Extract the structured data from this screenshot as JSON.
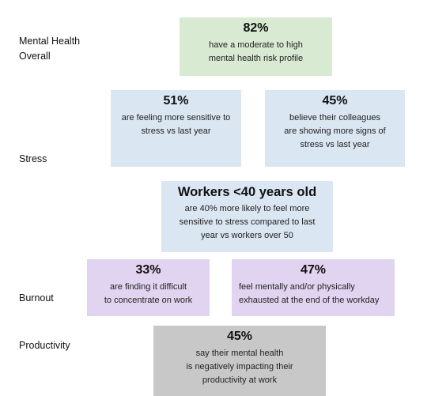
{
  "colors": {
    "green": "#d9ead3",
    "blue": "#dae6f2",
    "purple": "#e1d4f0",
    "gray": "#c8c8c8"
  },
  "row_labels": {
    "mental_health": "Mental Health\nOverall",
    "stress": "Stress",
    "burnout": "Burnout",
    "productivity": "Productivity"
  },
  "cards": {
    "mental_health": {
      "stat": "82%",
      "desc": "have a moderate to high\nmental health risk profile"
    },
    "stress_sensitive": {
      "stat": "51%",
      "desc": "are feeling more sensitive to\nstress vs last year"
    },
    "stress_colleagues": {
      "stat": "45%",
      "desc": "believe their colleagues\nare showing more signs of\nstress vs last year"
    },
    "workers_under_40": {
      "stat": "Workers <40 years old",
      "desc": "are 40% more likely to feel more\nsensitive to stress compared to last\nyear vs workers over 50"
    },
    "burnout_concentrate": {
      "stat": "33%",
      "desc": "are finding it difficult\nto concentrate on work"
    },
    "burnout_exhausted": {
      "stat": "47%",
      "desc": "feel mentally and/or physically\nexhausted at the end of the workday"
    },
    "productivity": {
      "stat": "45%",
      "desc": "say their mental health\nis negatively impacting their\nproductivity at work"
    }
  }
}
